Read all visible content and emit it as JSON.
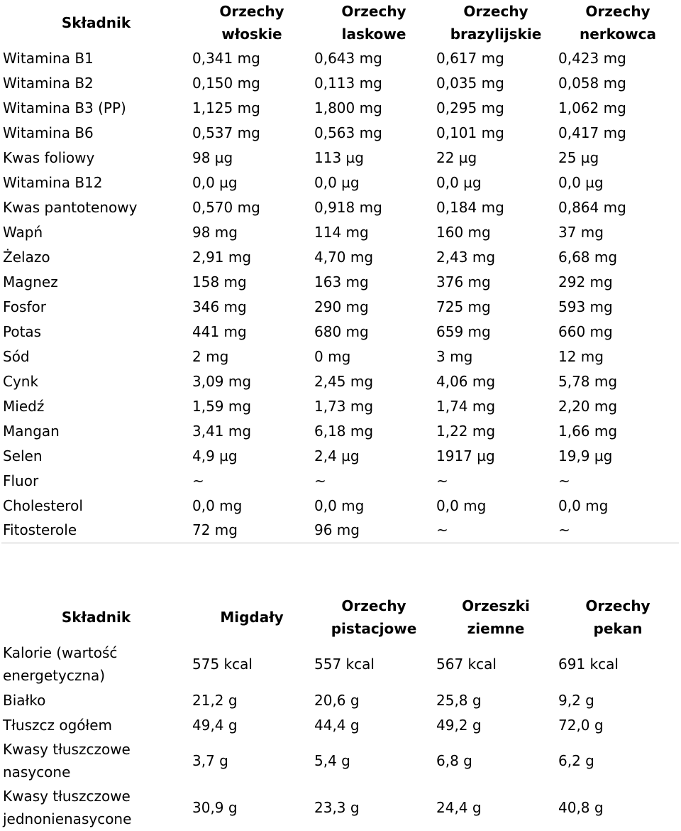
{
  "table1": {
    "headers": [
      [
        "Składnik"
      ],
      [
        "Orzechy",
        "włoskie"
      ],
      [
        "Orzechy",
        "laskowe"
      ],
      [
        "Orzechy",
        "brazylijskie"
      ],
      [
        "Orzechy",
        "nerkowca"
      ]
    ],
    "rows": [
      [
        "Witamina B1",
        "0,341 mg",
        "0,643 mg",
        "0,617 mg",
        "0,423 mg"
      ],
      [
        "Witamina B2",
        "0,150 mg",
        "0,113 mg",
        "0,035 mg",
        "0,058 mg"
      ],
      [
        "Witamina B3 (PP)",
        "1,125 mg",
        "1,800 mg",
        "0,295 mg",
        "1,062 mg"
      ],
      [
        "Witamina B6",
        "0,537 mg",
        "0,563 mg",
        "0,101 mg",
        "0,417 mg"
      ],
      [
        "Kwas foliowy",
        "98 µg",
        "113 µg",
        "22 µg",
        "25 µg"
      ],
      [
        "Witamina B12",
        "0,0 µg",
        "0,0 µg",
        "0,0 µg",
        "0,0 µg"
      ],
      [
        "Kwas pantotenowy",
        "0,570 mg",
        "0,918 mg",
        "0,184 mg",
        "0,864 mg"
      ],
      [
        "Wapń",
        "98 mg",
        "114 mg",
        "160 mg",
        "37 mg"
      ],
      [
        "Żelazo",
        "2,91 mg",
        "4,70 mg",
        "2,43 mg",
        "6,68 mg"
      ],
      [
        "Magnez",
        "158 mg",
        "163 mg",
        "376 mg",
        "292 mg"
      ],
      [
        "Fosfor",
        "346 mg",
        "290 mg",
        "725 mg",
        "593 mg"
      ],
      [
        "Potas",
        "441 mg",
        "680 mg",
        "659 mg",
        "660 mg"
      ],
      [
        "Sód",
        "2 mg",
        "0 mg",
        "3 mg",
        "12 mg"
      ],
      [
        "Cynk",
        "3,09 mg",
        "2,45 mg",
        "4,06 mg",
        "5,78 mg"
      ],
      [
        "Miedź",
        "1,59 mg",
        "1,73 mg",
        "1,74 mg",
        "2,20 mg"
      ],
      [
        "Mangan",
        "3,41 mg",
        "6,18 mg",
        "1,22 mg",
        "1,66 mg"
      ],
      [
        "Selen",
        "4,9 µg",
        "2,4 µg",
        "1917 µg",
        "19,9 µg"
      ],
      [
        "Fluor",
        "~",
        "~",
        "~",
        "~"
      ],
      [
        "Cholesterol",
        "0,0 mg",
        "0,0 mg",
        "0,0 mg",
        "0,0 mg"
      ],
      [
        "Fitosterole",
        "72 mg",
        "96 mg",
        "~",
        "~"
      ]
    ]
  },
  "table2": {
    "headers": [
      [
        "Składnik"
      ],
      [
        "Migdały"
      ],
      [
        "Orzechy",
        "pistacjowe"
      ],
      [
        "Orzeszki",
        "ziemne"
      ],
      [
        "Orzechy",
        "pekan"
      ]
    ],
    "rows": [
      [
        "Kalorie (wartość energetyczna)",
        "575 kcal",
        "557 kcal",
        "567 kcal",
        "691 kcal"
      ],
      [
        "Białko",
        "21,2 g",
        "20,6 g",
        "25,8 g",
        "9,2 g"
      ],
      [
        "Tłuszcz ogółem",
        "49,4 g",
        "44,4 g",
        "49,2 g",
        "72,0 g"
      ],
      [
        "Kwasy tłuszczowe nasycone",
        "3,7 g",
        "5,4 g",
        "6,8 g",
        "6,2 g"
      ],
      [
        "Kwasy tłuszczowe jednonienasycone",
        "30,9 g",
        "23,3 g",
        "24,4 g",
        "40,8 g"
      ]
    ]
  }
}
